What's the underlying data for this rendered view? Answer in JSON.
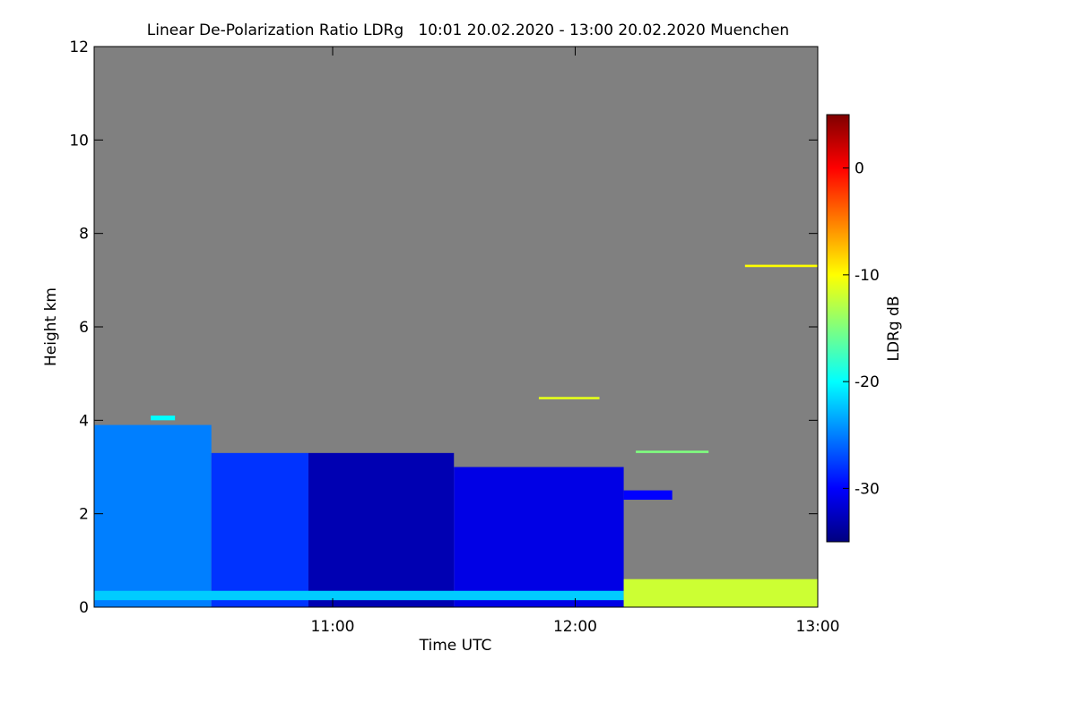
{
  "chart_data": {
    "type": "heatmap",
    "title": "Linear De-Polarization Ratio LDRg   10:01 20.02.2020 - 13:00 20.02.2020 Muenchen",
    "xlabel": "Time UTC",
    "ylabel": "Height km",
    "x_ticks": [
      {
        "value": 11.0,
        "label": "11:00"
      },
      {
        "value": 12.0,
        "label": "12:00"
      },
      {
        "value": 13.0,
        "label": "13:00"
      }
    ],
    "y_ticks": [
      0,
      2,
      4,
      6,
      8,
      10,
      12
    ],
    "xlim": [
      10.0167,
      13.0
    ],
    "ylim": [
      0,
      12
    ],
    "colorbar": {
      "label": "LDRg dB",
      "range": [
        -35,
        5
      ],
      "ticks": [
        0,
        -10,
        -20,
        -30
      ],
      "stops": [
        "#00007f",
        "#0000ff",
        "#007fff",
        "#00ffff",
        "#7fff7f",
        "#ffff00",
        "#ff7f00",
        "#ff0000",
        "#7f0000"
      ]
    },
    "background_color": "#808080",
    "regions": [
      {
        "t0": 10.0167,
        "t1": 10.5,
        "h0": 0.0,
        "h1": 3.9,
        "ldr": -25
      },
      {
        "t0": 10.5,
        "t1": 10.9,
        "h0": 0.0,
        "h1": 3.3,
        "ldr": -28
      },
      {
        "t0": 10.9,
        "t1": 11.5,
        "h0": 0.0,
        "h1": 3.3,
        "ldr": -33
      },
      {
        "t0": 11.5,
        "t1": 12.2,
        "h0": 0.0,
        "h1": 3.0,
        "ldr": -31
      },
      {
        "t0": 12.2,
        "t1": 12.4,
        "h0": 2.3,
        "h1": 2.5,
        "ldr": -30
      },
      {
        "t0": 10.0167,
        "t1": 12.2,
        "h0": 0.15,
        "h1": 0.35,
        "ldr": -22
      },
      {
        "t0": 10.25,
        "t1": 10.35,
        "h0": 4.0,
        "h1": 4.1,
        "ldr": -20
      },
      {
        "t0": 12.2,
        "t1": 13.0,
        "h0": 0.0,
        "h1": 0.6,
        "ldr": -12
      },
      {
        "t0": 12.25,
        "t1": 12.55,
        "h0": 3.3,
        "h1": 3.35,
        "ldr": -15
      },
      {
        "t0": 12.7,
        "t1": 13.0,
        "h0": 7.28,
        "h1": 7.33,
        "ldr": -10
      },
      {
        "t0": 11.85,
        "t1": 12.1,
        "h0": 4.45,
        "h1": 4.5,
        "ldr": -11
      }
    ]
  }
}
